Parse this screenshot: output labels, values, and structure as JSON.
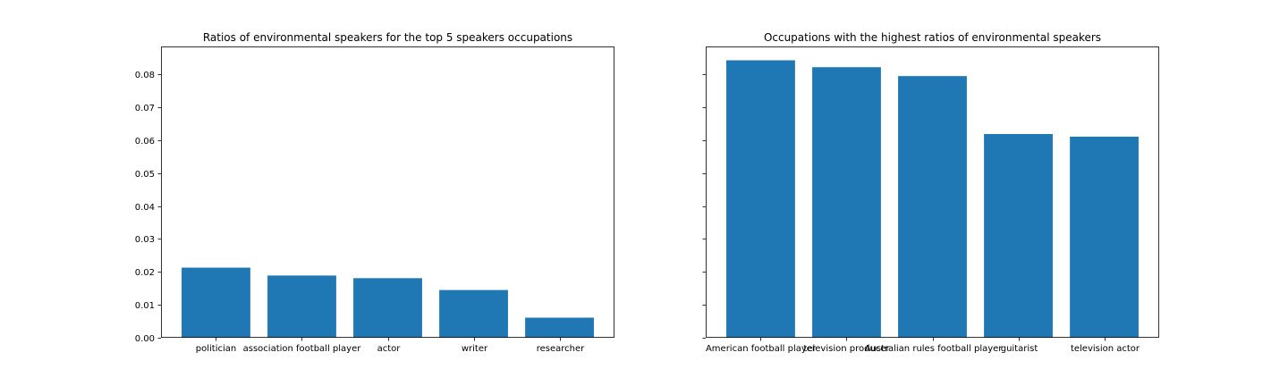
{
  "chart_data": [
    {
      "type": "bar",
      "title": "Ratios of environmental speakers for the top 5 speakers occupations",
      "categories": [
        "politician",
        "association football player",
        "actor",
        "writer",
        "researcher"
      ],
      "values": [
        0.0213,
        0.0189,
        0.0181,
        0.0145,
        0.0061
      ],
      "ylim": [
        0,
        0.0885
      ],
      "yticks": [
        0.0,
        0.01,
        0.02,
        0.03,
        0.04,
        0.05,
        0.06,
        0.07,
        0.08
      ],
      "ytick_labels": [
        "0.00",
        "0.01",
        "0.02",
        "0.03",
        "0.04",
        "0.05",
        "0.06",
        "0.07",
        "0.08"
      ],
      "show_ytick_labels": true,
      "color": "#1f77b4",
      "grid": false
    },
    {
      "type": "bar",
      "title": "Occupations with the highest ratios of environmental speakers",
      "categories": [
        "American football player",
        "television producer",
        "Australian rules football player",
        "guitarist",
        "television actor"
      ],
      "values": [
        0.0843,
        0.0822,
        0.0795,
        0.0619,
        0.0611
      ],
      "ylim": [
        0,
        0.0885
      ],
      "yticks": [
        0.0,
        0.01,
        0.02,
        0.03,
        0.04,
        0.05,
        0.06,
        0.07,
        0.08
      ],
      "ytick_labels": [],
      "show_ytick_labels": false,
      "color": "#1f77b4",
      "grid": false
    }
  ]
}
